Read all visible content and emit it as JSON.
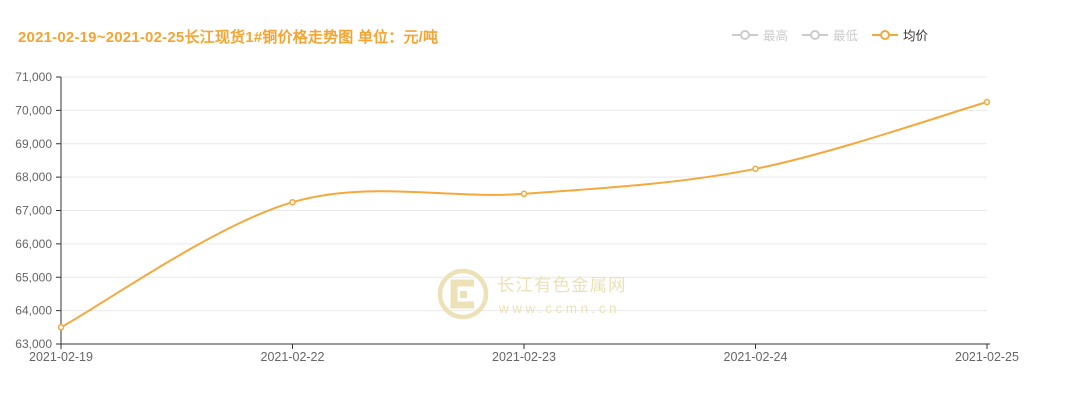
{
  "header": {
    "title": "2021-02-19~2021-02-25长江现货1#铜价格走势图 单位：元/吨",
    "title_color": "#f6a431"
  },
  "legend": {
    "items": [
      {
        "id": "high",
        "label": "最高",
        "active": false
      },
      {
        "id": "low",
        "label": "最低",
        "active": false
      },
      {
        "id": "avg",
        "label": "均价",
        "active": true
      }
    ],
    "active_color": "#f5a83c",
    "inactive_color": "#cccccc",
    "active_text_color": "#333333"
  },
  "watermark": {
    "site_name": "长江有色金属网",
    "site_url": "www.ccmn.cn",
    "color": "#ece0b4"
  },
  "chart_data": {
    "type": "line",
    "smooth": true,
    "title": "2021-02-19~2021-02-25长江现货1#铜价格走势图",
    "unit": "元/吨",
    "categories": [
      "2021-02-19",
      "2021-02-22",
      "2021-02-23",
      "2021-02-24",
      "2021-02-25"
    ],
    "series": [
      {
        "name": "均价",
        "values": [
          63500,
          67250,
          67500,
          68250,
          70250
        ],
        "color": "#f5a83c",
        "visible": true
      },
      {
        "name": "最高",
        "values": [],
        "visible": false
      },
      {
        "name": "最低",
        "values": [],
        "visible": false
      }
    ],
    "ylim": [
      63000,
      71000
    ],
    "y_tick_interval": 1000,
    "y_tick_labels": [
      "63,000",
      "64,000",
      "65,000",
      "66,000",
      "67,000",
      "68,000",
      "69,000",
      "70,000",
      "71,000"
    ],
    "grid": true,
    "legend_position": "top-right",
    "axis_color": "#333333",
    "grid_color": "#e9e9e9",
    "label_color": "#666666",
    "marker_fill": "#ffffff"
  }
}
